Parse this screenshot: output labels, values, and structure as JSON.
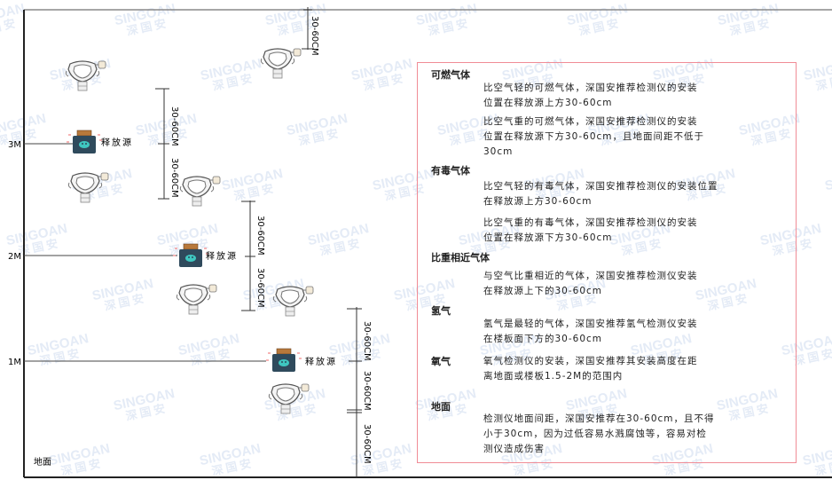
{
  "watermark": {
    "brand": "SINGOAN",
    "brand_cn": "深国安"
  },
  "diagram": {
    "levels": [
      {
        "label": "3M"
      },
      {
        "label": "2M"
      },
      {
        "label": "1M"
      }
    ],
    "ground_label": "地面",
    "source_label": "释放源",
    "dimension_label": "30-60CM"
  },
  "notes": {
    "sections": [
      {
        "title": "可燃气体",
        "paragraphs": [
          [
            "比空气轻的可燃气体，深国安推荐检测仪的安装",
            "位置在释放源上方30-60cm"
          ],
          [
            "比空气重的可燃气体，深国安推荐检测仪的安装",
            "位置在释放源下方30-60cm，且地面间距不低于",
            "30cm"
          ]
        ]
      },
      {
        "title": "有毒气体",
        "paragraphs": [
          [
            "比空气轻的有毒气体，深国安推荐检测仪的安装位置",
            "在释放源上方30-60cm"
          ],
          [
            "比空气重的有毒气体，深国安推荐检测仪的安装",
            "位置在释放源下方30-60cm"
          ]
        ]
      },
      {
        "title": "比重相近气体",
        "paragraphs": [
          [
            "与空气比重相近的气体，深国安推荐检测仪安装",
            "在释放源上下的30-60cm"
          ]
        ]
      },
      {
        "title": "氢气",
        "paragraphs": [
          [
            "氢气是最轻的气体，深国安推荐氢气检测仪安装",
            "在楼板面下方的30-60cm"
          ]
        ]
      },
      {
        "title": "氧气",
        "paragraphs": [
          [
            "氧气检测仪的安装，深国安推荐其安装高度在距",
            "离地面或楼板1.5-2M的范围内"
          ]
        ]
      },
      {
        "title": "地面",
        "paragraphs": [
          [
            "检测仪地面间距，深国安推荐在30-60cm，且不得",
            "小于30cm，因为过低容易水溅腐蚀等，容易对检",
            "测仪造成伤害"
          ]
        ]
      }
    ]
  }
}
